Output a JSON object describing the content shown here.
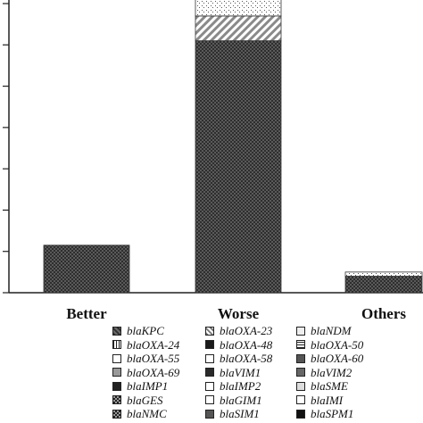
{
  "chart_data": {
    "type": "bar",
    "stacked": true,
    "categories": [
      "Better",
      "Worse",
      "Others"
    ],
    "ylim": [
      0,
      70
    ],
    "grid": false,
    "legend_position": "bottom",
    "series": [
      {
        "name": "blaKPC",
        "values": [
          11.5,
          61,
          4
        ],
        "pattern": "dense-dots",
        "color": "#4a4a4a"
      },
      {
        "name": "blaOXA-23",
        "values": [
          0,
          6,
          0
        ],
        "pattern": "diagonal",
        "color": "#bdbdbd"
      },
      {
        "name": "blaNDM",
        "values": [
          0,
          4,
          1
        ],
        "pattern": "sparse-dots",
        "color": "#eeeeee"
      },
      {
        "name": "blaOXA-24",
        "values": [
          0,
          0,
          0
        ],
        "pattern": "vertical",
        "color": "#333333"
      },
      {
        "name": "blaOXA-48",
        "values": [
          0,
          0,
          0
        ],
        "pattern": "solid-dark",
        "color": "#1a1a1a"
      },
      {
        "name": "blaOXA-50",
        "values": [
          0,
          0,
          0
        ],
        "pattern": "horizontal",
        "color": "#777777"
      },
      {
        "name": "blaOXA-55",
        "values": [
          0,
          0,
          0
        ],
        "pattern": "dash",
        "color": "#ffffff"
      },
      {
        "name": "blaOXA-58",
        "values": [
          0,
          0,
          0
        ],
        "pattern": "brace",
        "color": "#ffffff"
      },
      {
        "name": "blaOXA-60",
        "values": [
          0,
          0,
          0
        ],
        "pattern": "wave",
        "color": "#555555"
      },
      {
        "name": "blaOXA-69",
        "values": [
          0,
          0,
          0
        ],
        "pattern": "wave-light",
        "color": "#999999"
      },
      {
        "name": "blaVIM1",
        "values": [
          0,
          0,
          0
        ],
        "pattern": "solid-mid",
        "color": "#2a2a2a"
      },
      {
        "name": "blaVIM2",
        "values": [
          0,
          0,
          0
        ],
        "pattern": "cross-tick",
        "color": "#666666"
      },
      {
        "name": "blaIMP1",
        "values": [
          0,
          0,
          0
        ],
        "pattern": "block",
        "color": "#222222"
      },
      {
        "name": "blaIMP2",
        "values": [
          0,
          0,
          0
        ],
        "pattern": "dashes-dots",
        "color": "#ffffff"
      },
      {
        "name": "blaSME",
        "values": [
          0,
          0,
          0
        ],
        "pattern": "light-dots",
        "color": "#dddddd"
      },
      {
        "name": "blaGES",
        "values": [
          0,
          0,
          0
        ],
        "pattern": "checker",
        "color": "#3a3a3a"
      },
      {
        "name": "blaGIM1",
        "values": [
          0,
          0,
          0
        ],
        "pattern": "dots-light",
        "color": "#ffffff"
      },
      {
        "name": "blaIMI",
        "values": [
          0,
          0,
          0
        ],
        "pattern": "dotted-line",
        "color": "#ffffff"
      },
      {
        "name": "blaNMC",
        "values": [
          0,
          0,
          0
        ],
        "pattern": "checker-dark",
        "color": "#2a2a2a"
      },
      {
        "name": "blaSIM1",
        "values": [
          0,
          0,
          0
        ],
        "pattern": "hash",
        "color": "#555555"
      },
      {
        "name": "blaSPM1",
        "values": [
          0,
          0,
          0
        ],
        "pattern": "bowtie",
        "color": "#111111"
      }
    ]
  }
}
